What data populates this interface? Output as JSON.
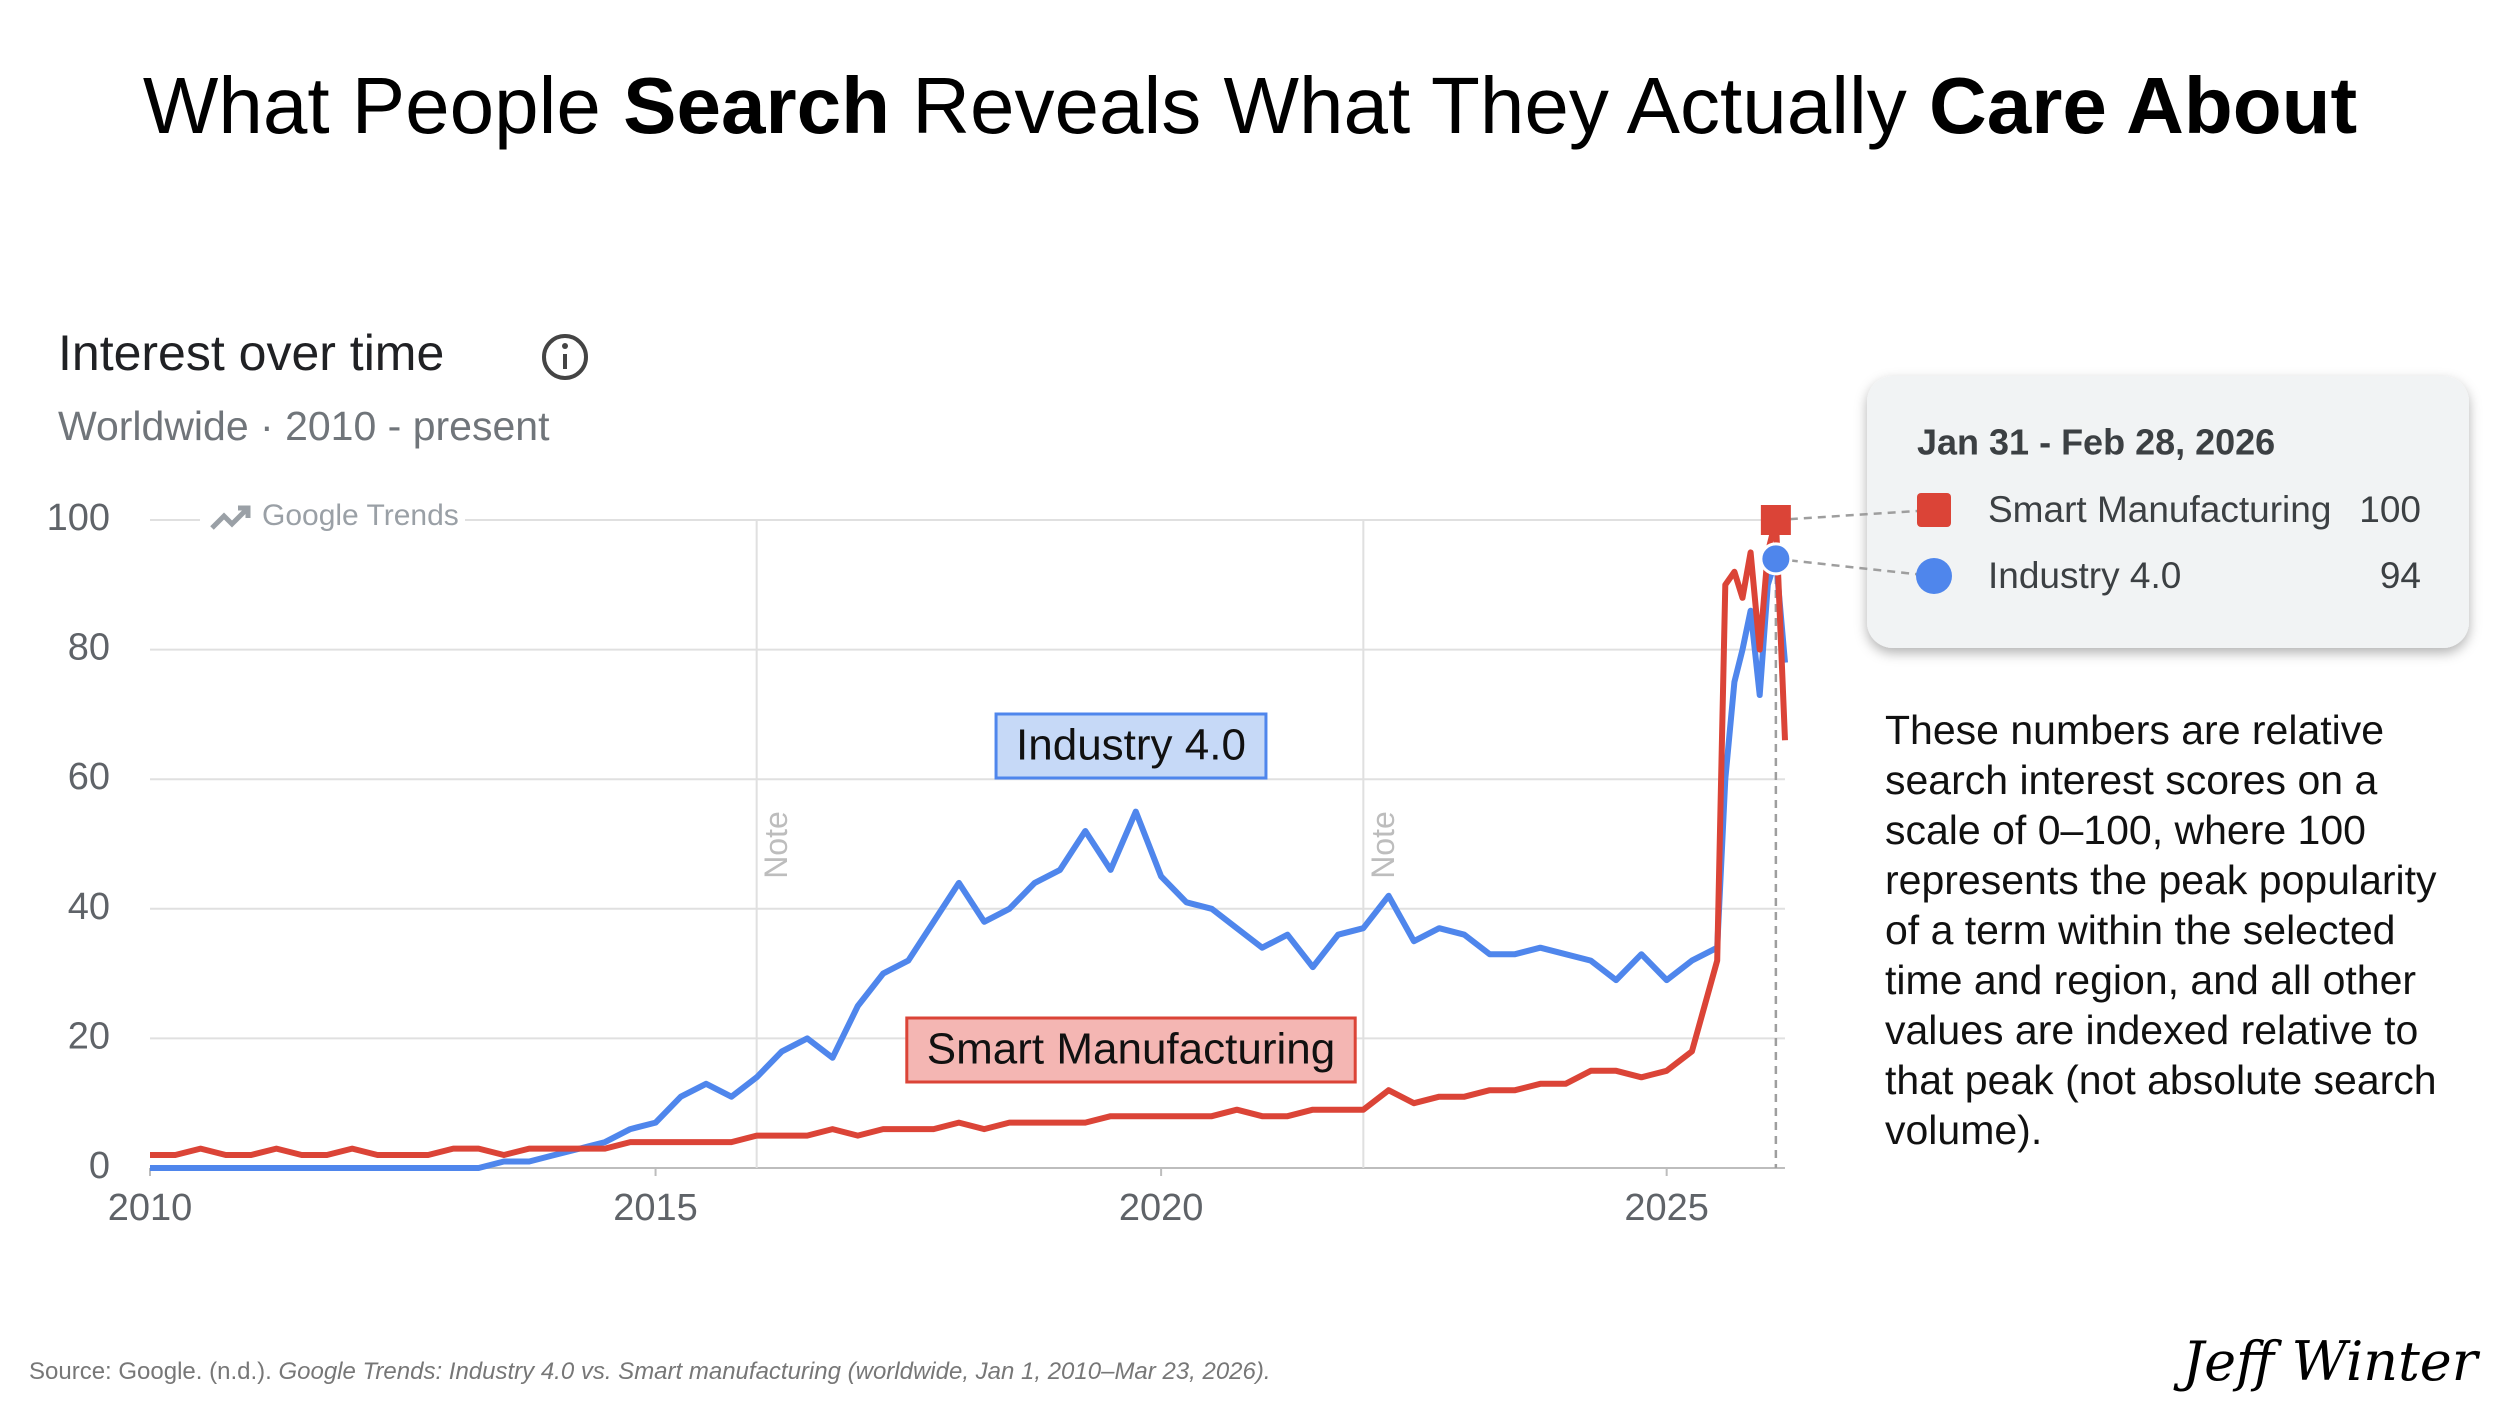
{
  "title_parts": [
    {
      "text": "What People ",
      "bold": false
    },
    {
      "text": "Search",
      "bold": true
    },
    {
      "text": " Reveals What They Actually ",
      "bold": false
    },
    {
      "text": "Care About",
      "bold": true
    }
  ],
  "chart_data": {
    "type": "line",
    "title": "Interest over time",
    "subtitle": "Worldwide · 2010 - present",
    "watermark": "Google Trends",
    "notes": [
      {
        "x": 2016,
        "label": "Note"
      },
      {
        "x": 2022,
        "label": "Note"
      }
    ],
    "x": [
      2010,
      2010.25,
      2010.5,
      2010.75,
      2011,
      2011.25,
      2011.5,
      2011.75,
      2012,
      2012.25,
      2012.5,
      2012.75,
      2013,
      2013.25,
      2013.5,
      2013.75,
      2014,
      2014.25,
      2014.5,
      2014.75,
      2015,
      2015.25,
      2015.5,
      2015.75,
      2016,
      2016.25,
      2016.5,
      2016.75,
      2017,
      2017.25,
      2017.5,
      2017.75,
      2018,
      2018.25,
      2018.5,
      2018.75,
      2019,
      2019.25,
      2019.5,
      2019.75,
      2020,
      2020.25,
      2020.5,
      2020.75,
      2021,
      2021.25,
      2021.5,
      2021.75,
      2022,
      2022.25,
      2022.5,
      2022.75,
      2023,
      2023.25,
      2023.5,
      2023.75,
      2024,
      2024.25,
      2024.5,
      2024.75,
      2025,
      2025.25,
      2025.5,
      2025.58,
      2025.67,
      2025.75,
      2025.83,
      2025.92,
      2026.0,
      2026.08,
      2026.17
    ],
    "series": [
      {
        "name": "Smart Manufacturing",
        "color": "#db4437",
        "marker": "square",
        "values": [
          2,
          2,
          3,
          2,
          2,
          3,
          2,
          2,
          3,
          2,
          2,
          2,
          3,
          3,
          2,
          3,
          3,
          3,
          3,
          4,
          4,
          4,
          4,
          4,
          5,
          5,
          5,
          6,
          5,
          6,
          6,
          6,
          7,
          6,
          7,
          7,
          7,
          7,
          8,
          8,
          8,
          8,
          8,
          9,
          8,
          8,
          9,
          9,
          9,
          12,
          10,
          11,
          11,
          12,
          12,
          13,
          13,
          15,
          15,
          14,
          15,
          18,
          32,
          90,
          92,
          88,
          95,
          80,
          95,
          100,
          66
        ]
      },
      {
        "name": "Industry 4.0",
        "color": "#4f86ec",
        "marker": "circle",
        "values": [
          0,
          0,
          0,
          0,
          0,
          0,
          0,
          0,
          0,
          0,
          0,
          0,
          0,
          0,
          1,
          1,
          2,
          3,
          4,
          6,
          7,
          11,
          13,
          11,
          14,
          18,
          20,
          17,
          25,
          30,
          32,
          38,
          44,
          38,
          40,
          44,
          46,
          52,
          46,
          55,
          45,
          41,
          40,
          37,
          34,
          36,
          31,
          36,
          37,
          42,
          35,
          37,
          36,
          33,
          33,
          34,
          33,
          32,
          29,
          33,
          29,
          32,
          34,
          60,
          75,
          80,
          86,
          73,
          90,
          94,
          78
        ]
      }
    ],
    "xlim": [
      2010,
      2026.2
    ],
    "xticks": [
      2010,
      2015,
      2020,
      2025
    ],
    "ylim": [
      0,
      100
    ],
    "yticks": [
      0,
      20,
      40,
      60,
      80,
      100
    ],
    "grid": true,
    "highlight_index": 69,
    "tooltip_title": "Jan 31 - Feb 28, 2026"
  },
  "annotation": "These numbers are relative search interest scores on a scale of 0–100, where 100 represents the peak popularity of a term within the selected time and region, and all other values are indexed relative to that peak (not absolute search volume).",
  "source_parts": [
    {
      "text": "Source: Google. (n.d.). ",
      "italic": false
    },
    {
      "text": "Google Trends: Industry 4.0 vs. Smart manufacturing (worldwide, Jan 1, 2010–Mar 23, 2026).",
      "italic": true
    }
  ],
  "signature": "Jeff Winter"
}
